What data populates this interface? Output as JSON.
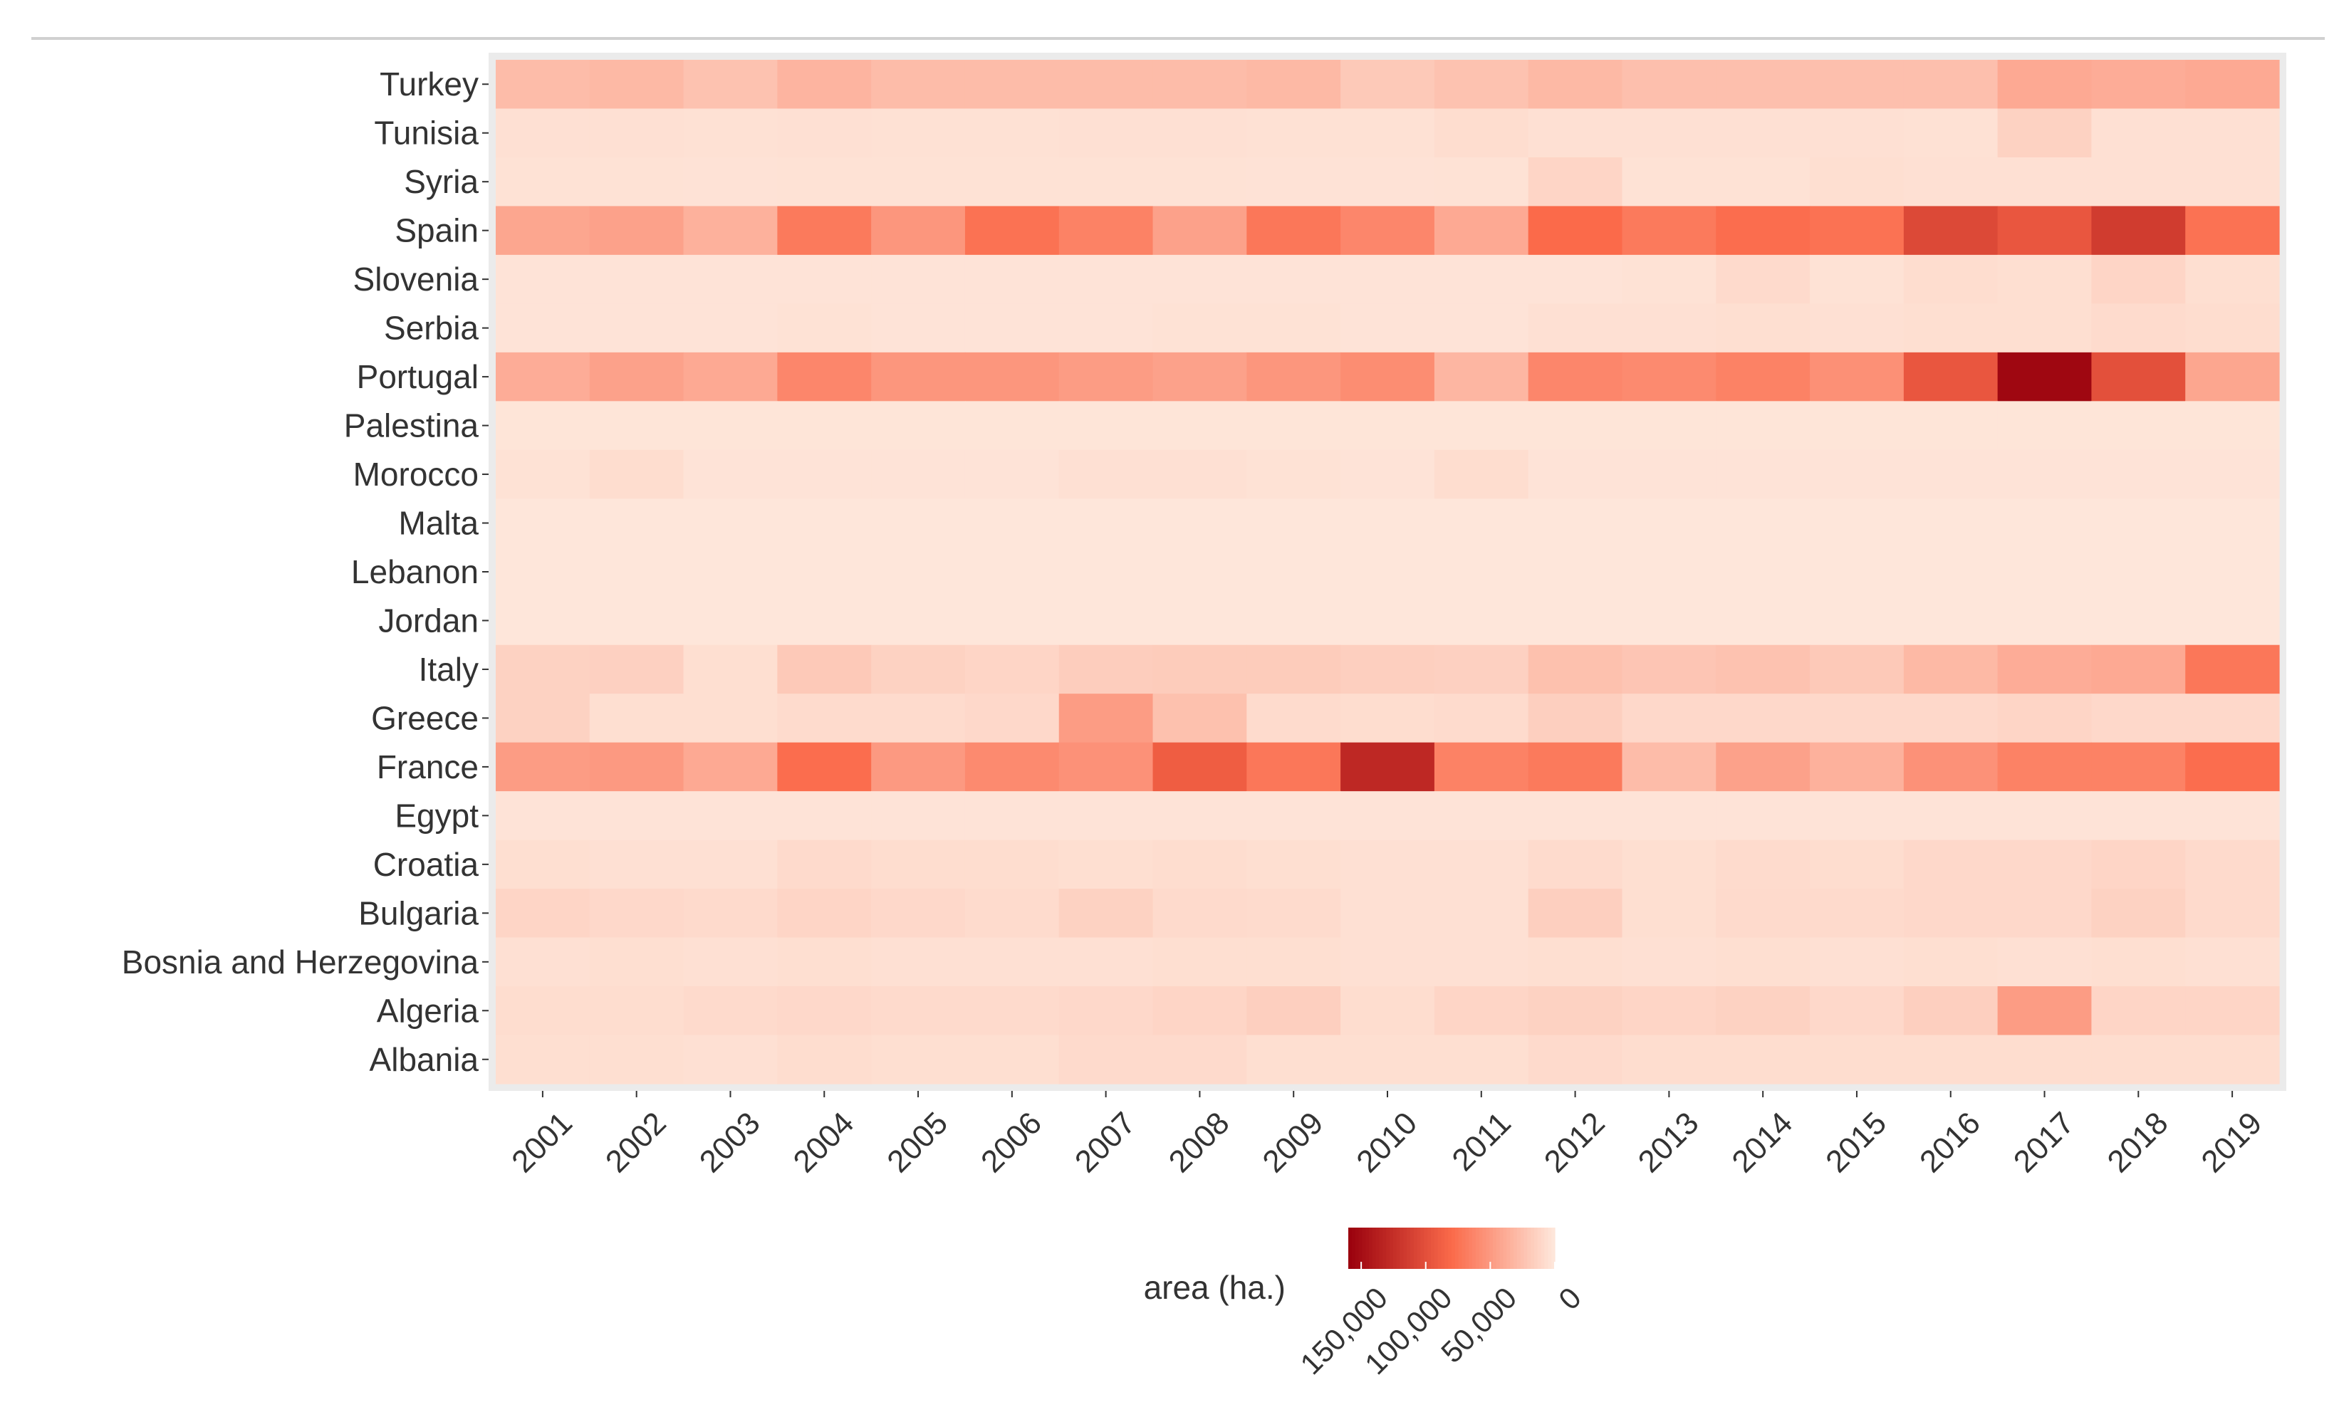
{
  "chart_data": {
    "type": "heatmap",
    "title": "",
    "xlabel": "",
    "ylabel": "",
    "x": [
      "2001",
      "2002",
      "2003",
      "2004",
      "2005",
      "2006",
      "2007",
      "2008",
      "2009",
      "2010",
      "2011",
      "2012",
      "2013",
      "2014",
      "2015",
      "2016",
      "2017",
      "2018",
      "2019"
    ],
    "y": [
      "Turkey",
      "Tunisia",
      "Syria",
      "Spain",
      "Slovenia",
      "Serbia",
      "Portugal",
      "Palestina",
      "Morocco",
      "Malta",
      "Lebanon",
      "Jordan",
      "Italy",
      "Greece",
      "France",
      "Egypt",
      "Croatia",
      "Bulgaria",
      "Bosnia and Herzegovina",
      "Algeria",
      "Albania"
    ],
    "values": [
      [
        28000,
        30000,
        24000,
        33000,
        28000,
        28000,
        28000,
        28000,
        30000,
        20000,
        24000,
        30000,
        26000,
        26000,
        26000,
        26000,
        40000,
        38000,
        40000
      ],
      [
        5000,
        5000,
        4500,
        5000,
        4500,
        4500,
        5000,
        5000,
        4500,
        4500,
        7000,
        5000,
        5000,
        5000,
        5000,
        4500,
        14000,
        5000,
        5000
      ],
      [
        4000,
        4000,
        3500,
        4000,
        4000,
        4000,
        4000,
        4000,
        3500,
        3500,
        4000,
        12000,
        4000,
        4000,
        6000,
        5000,
        5000,
        5000,
        5000
      ],
      [
        42000,
        45000,
        35000,
        70000,
        52000,
        75000,
        65000,
        45000,
        72000,
        62000,
        40000,
        80000,
        70000,
        78000,
        75000,
        105000,
        95000,
        115000,
        75000
      ],
      [
        3000,
        3000,
        3000,
        3000,
        3000,
        3000,
        3000,
        3000,
        3000,
        3000,
        3000,
        3000,
        4000,
        9000,
        4000,
        7000,
        6000,
        12000,
        6000
      ],
      [
        3000,
        3000,
        3000,
        4000,
        3000,
        3000,
        3000,
        4000,
        4000,
        3000,
        3000,
        5000,
        5000,
        6000,
        5000,
        6000,
        6000,
        8000,
        7000
      ],
      [
        38000,
        45000,
        40000,
        62000,
        52000,
        52000,
        48000,
        45000,
        52000,
        58000,
        32000,
        62000,
        60000,
        65000,
        56000,
        95000,
        155000,
        100000,
        42000
      ],
      [
        2000,
        2000,
        2000,
        2000,
        2000,
        2000,
        2000,
        2000,
        2000,
        2000,
        2000,
        2000,
        2000,
        2000,
        2000,
        2000,
        2000,
        2000,
        2000
      ],
      [
        4000,
        7000,
        3000,
        3000,
        3000,
        3000,
        5000,
        5000,
        4000,
        3000,
        7000,
        3000,
        3000,
        3000,
        3000,
        3000,
        3000,
        3000,
        3000
      ],
      [
        1000,
        1000,
        1000,
        1000,
        1000,
        1000,
        1000,
        1000,
        1000,
        1000,
        1000,
        1000,
        1000,
        1000,
        1000,
        1000,
        1000,
        1000,
        1000
      ],
      [
        1000,
        1000,
        1000,
        1000,
        1000,
        1000,
        1000,
        1000,
        1000,
        1000,
        1000,
        1000,
        1000,
        1000,
        1000,
        1000,
        1000,
        1000,
        1000
      ],
      [
        1000,
        1000,
        1000,
        1000,
        1000,
        1000,
        1000,
        1000,
        1000,
        1000,
        1000,
        1000,
        1000,
        1000,
        1000,
        1000,
        1000,
        1000,
        1000
      ],
      [
        14000,
        15000,
        6000,
        20000,
        14000,
        12000,
        17000,
        18000,
        18000,
        16000,
        15000,
        25000,
        22000,
        24000,
        20000,
        30000,
        38000,
        40000,
        72000
      ],
      [
        14000,
        6000,
        6000,
        8000,
        8000,
        10000,
        48000,
        25000,
        8000,
        7000,
        8000,
        16000,
        10000,
        10000,
        10000,
        10000,
        12000,
        10000,
        10000
      ],
      [
        48000,
        50000,
        40000,
        78000,
        50000,
        60000,
        55000,
        90000,
        72000,
        130000,
        65000,
        70000,
        28000,
        45000,
        35000,
        55000,
        65000,
        65000,
        78000
      ],
      [
        3000,
        3000,
        3000,
        3000,
        3000,
        3000,
        3000,
        3000,
        3000,
        3000,
        3000,
        3000,
        3000,
        3000,
        3000,
        3000,
        3000,
        3000,
        3000
      ],
      [
        6000,
        5000,
        5000,
        9000,
        7000,
        7000,
        6000,
        7000,
        6000,
        5000,
        5000,
        8000,
        6000,
        8000,
        7000,
        10000,
        10000,
        12000,
        9000
      ],
      [
        12000,
        10000,
        9000,
        12000,
        10000,
        8000,
        14000,
        9000,
        8000,
        5000,
        5000,
        16000,
        6000,
        9000,
        9000,
        10000,
        10000,
        14000,
        9000
      ],
      [
        5000,
        6000,
        5000,
        6000,
        5000,
        5000,
        5000,
        6000,
        6000,
        5000,
        5000,
        6000,
        5000,
        6000,
        5000,
        6000,
        5000,
        6000,
        5000
      ],
      [
        7000,
        7000,
        9000,
        10000,
        9000,
        9000,
        10000,
        12000,
        16000,
        7000,
        12000,
        14000,
        12000,
        14000,
        10000,
        16000,
        48000,
        12000,
        12000
      ],
      [
        6000,
        6000,
        5000,
        7000,
        6000,
        6000,
        9000,
        9000,
        6000,
        6000,
        6000,
        9000,
        7000,
        7000,
        7000,
        7000,
        7000,
        7000,
        7000
      ]
    ],
    "colorbar": {
      "title": "area (ha.)",
      "ticks": [
        150000,
        100000,
        50000,
        0
      ],
      "tick_labels": [
        "150,000",
        "100,000",
        "50,000",
        "0"
      ],
      "min": 0,
      "max": 160000,
      "colors": {
        "low": "#fee8dc",
        "mid": "#fb6a4a",
        "high": "#99000d"
      }
    },
    "background": "#ebebeb",
    "grid": false
  }
}
